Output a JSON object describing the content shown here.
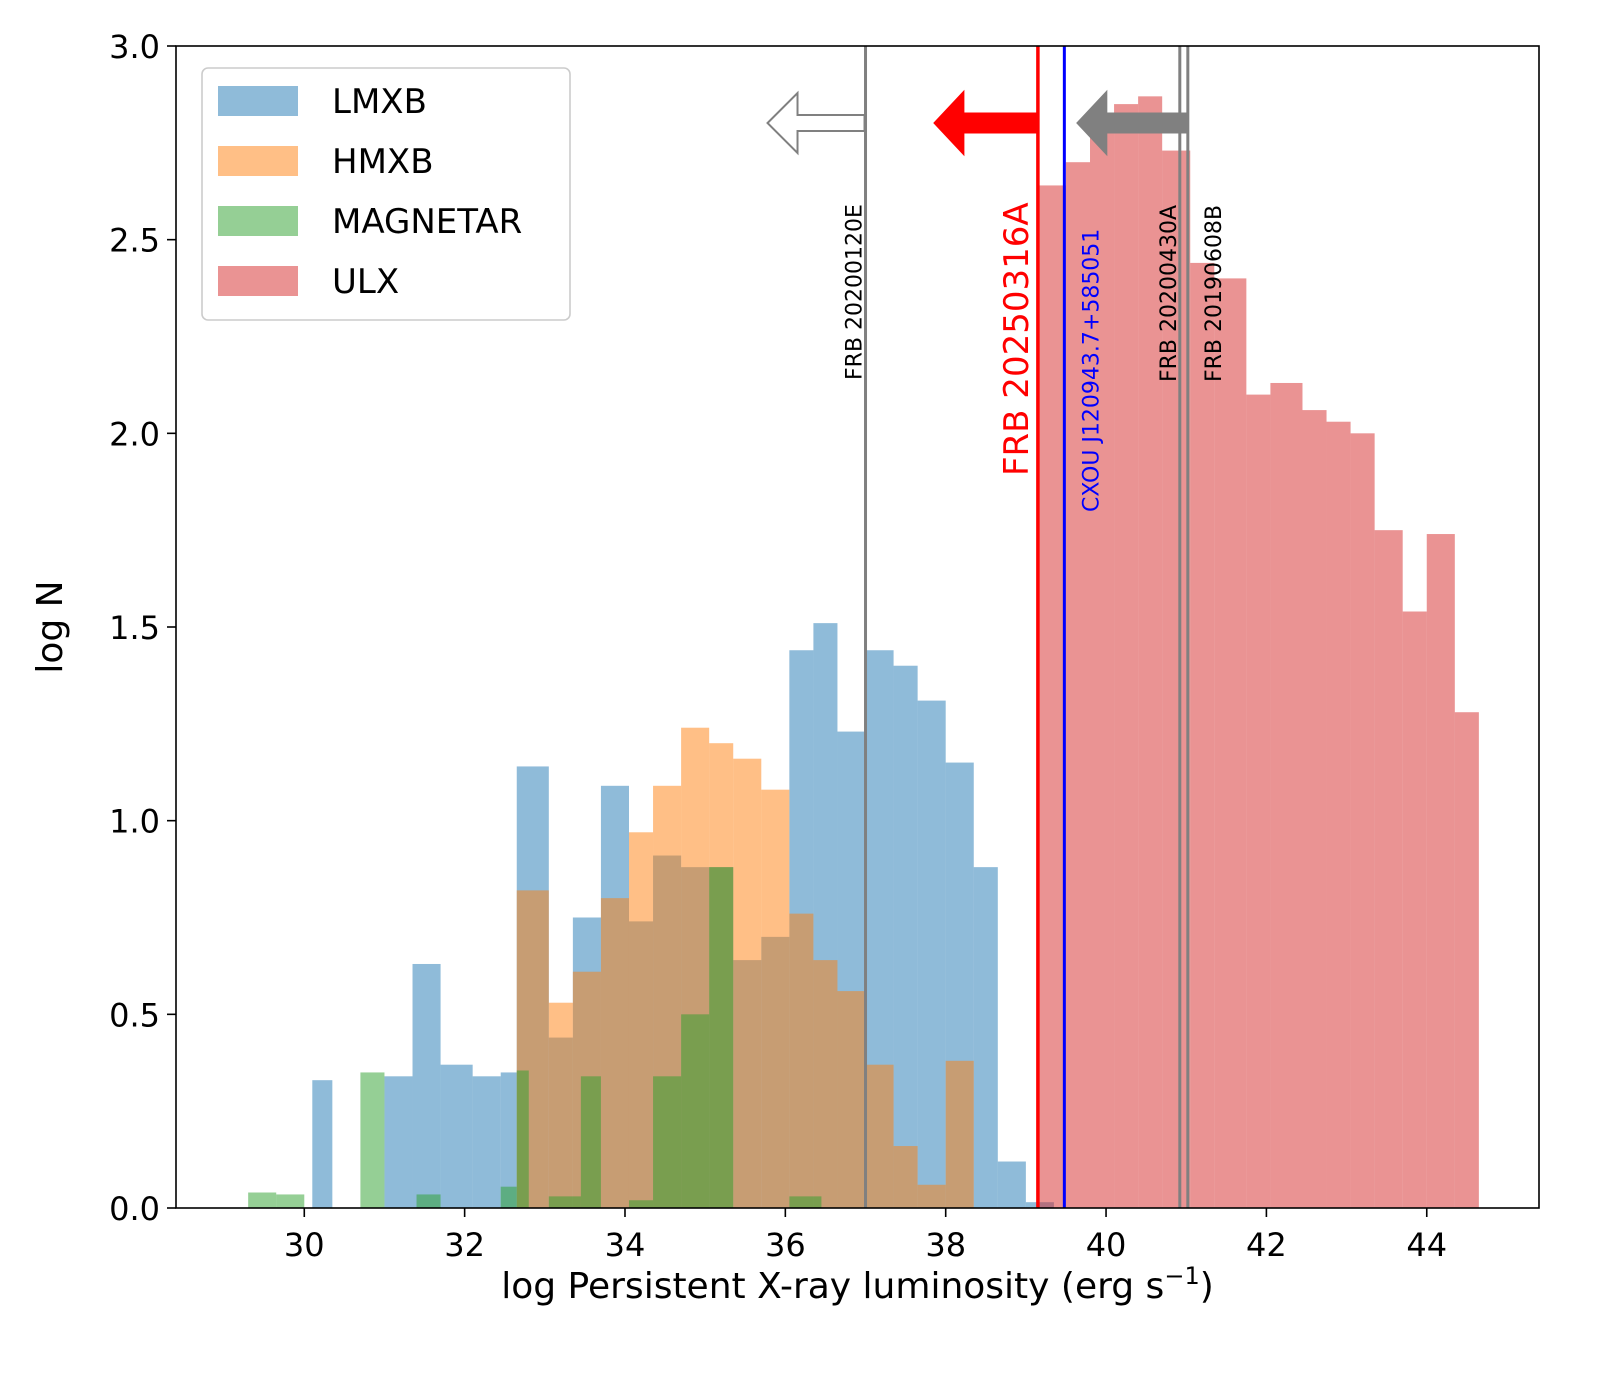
{
  "chart_data": {
    "type": "bar",
    "title": "",
    "xlabel": "log Persistent X-ray luminosity (erg s",
    "xlabel_sup": "−1",
    "xlabel_close": ")",
    "ylabel": "log N",
    "xlim": [
      28.4,
      45.4
    ],
    "ylim": [
      0,
      3
    ],
    "xticks": [
      "30",
      "32",
      "34",
      "36",
      "38",
      "40",
      "42",
      "44"
    ],
    "xtick_values": [
      30,
      32,
      34,
      36,
      38,
      40,
      42,
      44
    ],
    "yticks": [
      "0.0",
      "0.5",
      "1.0",
      "1.5",
      "2.0",
      "2.5",
      "3.0"
    ],
    "ytick_values": [
      0,
      0.5,
      1.0,
      1.5,
      2.0,
      2.5,
      3.0
    ],
    "legend_position": "top-left",
    "series": [
      {
        "name": "LMXB",
        "color": "#1f77b4",
        "alpha": 0.5,
        "bins": [
          [
            30.1,
            30.35,
            0.33
          ],
          [
            31.0,
            31.35,
            0.34
          ],
          [
            31.35,
            31.7,
            0.63
          ],
          [
            31.7,
            32.1,
            0.37
          ],
          [
            32.1,
            32.45,
            0.34
          ],
          [
            32.45,
            32.65,
            0.35
          ],
          [
            32.65,
            33.05,
            1.14
          ],
          [
            33.05,
            33.35,
            0.44
          ],
          [
            33.35,
            33.7,
            0.75
          ],
          [
            33.7,
            34.05,
            1.09
          ],
          [
            34.05,
            34.35,
            0.74
          ],
          [
            34.35,
            34.7,
            0.91
          ],
          [
            34.7,
            35.05,
            0.88
          ],
          [
            35.05,
            35.35,
            0.88
          ],
          [
            35.35,
            35.7,
            0.64
          ],
          [
            35.7,
            36.05,
            0.7
          ],
          [
            36.05,
            36.35,
            1.44
          ],
          [
            36.35,
            36.65,
            1.51
          ],
          [
            36.65,
            37.0,
            1.23
          ],
          [
            37.0,
            37.35,
            1.44
          ],
          [
            37.35,
            37.65,
            1.4
          ],
          [
            37.65,
            38.0,
            1.31
          ],
          [
            38.0,
            38.35,
            1.15
          ],
          [
            38.35,
            38.65,
            0.88
          ],
          [
            38.65,
            39.0,
            0.12
          ],
          [
            39.0,
            39.35,
            0.015
          ]
        ]
      },
      {
        "name": "HMXB",
        "color": "#ff7f0e",
        "alpha": 0.5,
        "bins": [
          [
            32.65,
            33.05,
            0.82
          ],
          [
            33.05,
            33.35,
            0.53
          ],
          [
            33.35,
            33.7,
            0.61
          ],
          [
            33.7,
            34.05,
            0.8
          ],
          [
            34.05,
            34.35,
            0.97
          ],
          [
            34.35,
            34.7,
            1.09
          ],
          [
            34.7,
            35.05,
            1.24
          ],
          [
            35.05,
            35.35,
            1.2
          ],
          [
            35.35,
            35.7,
            1.16
          ],
          [
            35.7,
            36.05,
            1.08
          ],
          [
            36.05,
            36.35,
            0.76
          ],
          [
            36.35,
            36.65,
            0.64
          ],
          [
            36.65,
            37.0,
            0.56
          ],
          [
            37.0,
            37.35,
            0.37
          ],
          [
            37.35,
            37.65,
            0.16
          ],
          [
            37.65,
            38.0,
            0.06
          ],
          [
            38.0,
            38.35,
            0.38
          ]
        ]
      },
      {
        "name": "MAGNETAR",
        "color": "#2ca02c",
        "alpha": 0.5,
        "bins": [
          [
            29.3,
            29.65,
            0.04
          ],
          [
            29.65,
            30.0,
            0.035
          ],
          [
            30.7,
            31.0,
            0.35
          ],
          [
            31.4,
            31.7,
            0.035
          ],
          [
            32.45,
            32.65,
            0.055
          ],
          [
            32.65,
            32.8,
            0.355
          ],
          [
            33.05,
            33.45,
            0.03
          ],
          [
            33.45,
            33.7,
            0.34
          ],
          [
            34.05,
            34.35,
            0.02
          ],
          [
            34.35,
            34.7,
            0.34
          ],
          [
            34.7,
            35.05,
            0.5
          ],
          [
            35.05,
            35.35,
            0.88
          ],
          [
            36.05,
            36.45,
            0.03
          ]
        ]
      },
      {
        "name": "ULX",
        "color": "#d62728",
        "alpha": 0.5,
        "bins": [
          [
            39.15,
            39.5,
            2.64
          ],
          [
            39.5,
            39.8,
            2.7
          ],
          [
            39.8,
            40.1,
            2.79
          ],
          [
            40.1,
            40.4,
            2.85
          ],
          [
            40.4,
            40.7,
            2.87
          ],
          [
            40.7,
            41.05,
            2.73
          ],
          [
            41.05,
            41.35,
            2.44
          ],
          [
            41.35,
            41.75,
            2.4
          ],
          [
            41.75,
            42.05,
            2.1
          ],
          [
            42.05,
            42.45,
            2.13
          ],
          [
            42.45,
            42.75,
            2.06
          ],
          [
            42.75,
            43.05,
            2.03
          ],
          [
            43.05,
            43.35,
            2.0
          ],
          [
            43.35,
            43.7,
            1.75
          ],
          [
            43.7,
            44.0,
            1.54
          ],
          [
            44.0,
            44.35,
            1.74
          ],
          [
            44.35,
            44.65,
            1.28
          ]
        ]
      }
    ],
    "markers": [
      {
        "name": "FRB 20200120E",
        "x": 37.0,
        "color": "#808080",
        "label_style": "small",
        "limit": "upper",
        "arrow_style": "hollow"
      },
      {
        "name": "FRB 20250316A",
        "x": 39.15,
        "color": "#ff0000",
        "label_style": "big",
        "limit": "upper",
        "arrow_style": "filled"
      },
      {
        "name": "CXOU J120943.7+585051",
        "x": 39.48,
        "color": "#0000ff",
        "label_style": "small",
        "limit": "none"
      },
      {
        "name": "FRB 20200430A",
        "x": 40.92,
        "color": "#808080",
        "label_style": "small",
        "limit": "upper",
        "arrow_style": "filled"
      },
      {
        "name": "FRB 20190608B",
        "x": 41.02,
        "color": "#808080",
        "label_style": "small",
        "limit": "upper",
        "arrow_style": "filled"
      }
    ]
  }
}
